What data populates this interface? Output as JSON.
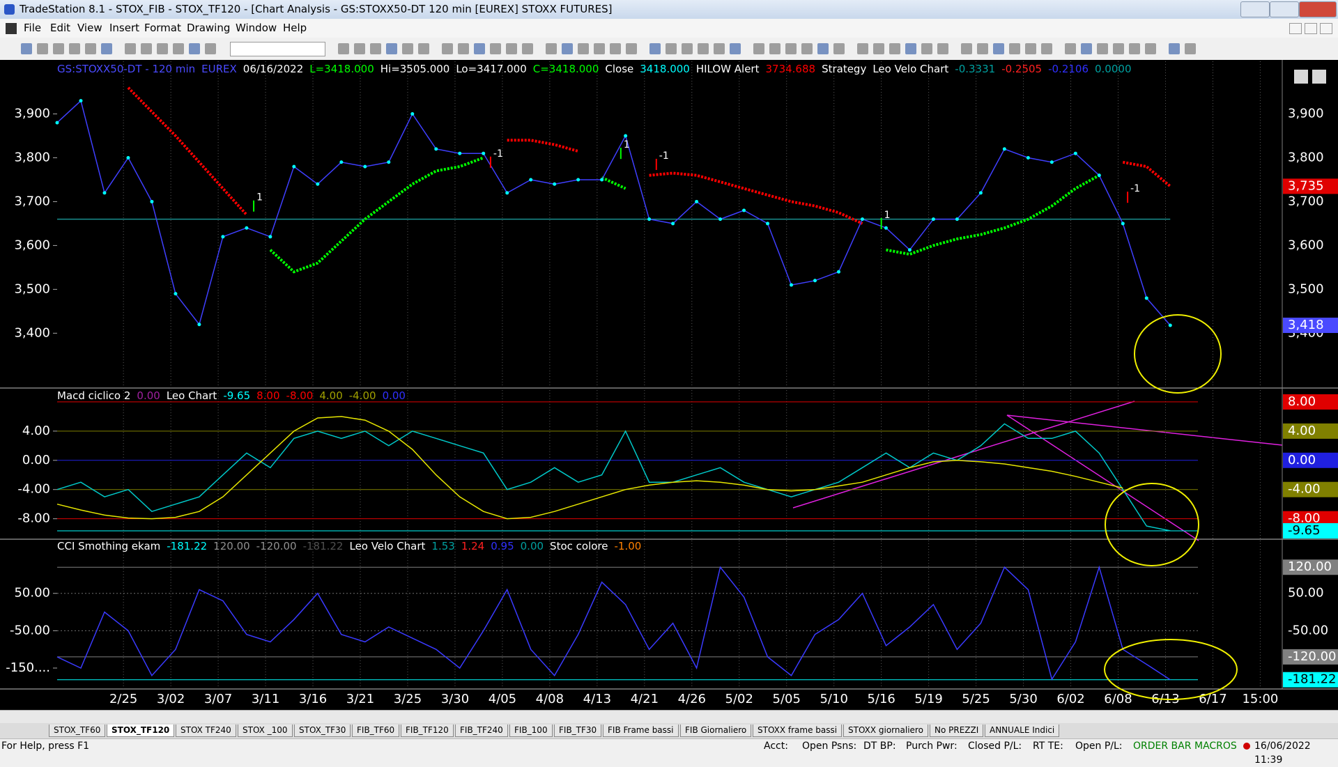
{
  "window": {
    "title": "TradeStation 8.1 - STOX_FIB - STOX_TF120 - [Chart Analysis - GS:STOXX50-DT  120 min  [EUREX] STOXX FUTURES]",
    "menu": [
      "File",
      "Edit",
      "View",
      "Insert",
      "Format",
      "Drawing",
      "Window",
      "Help"
    ],
    "tabs": [
      "STOX_TF60",
      "STOX_TF120",
      "STOX TF240",
      "STOX _100",
      "STOX_TF30",
      "FIB_TF60",
      "FIB_TF120",
      "FIB_TF240",
      "FIB_100",
      "FIB_TF30",
      "FIB Frame bassi",
      "FIB Giornaliero",
      "STOXX frame bassi",
      "STOXX giornaliero",
      "No PREZZI",
      "ANNUALE Indici"
    ],
    "status": [
      "For Help, press F1",
      "Acct:",
      "Open Psns:",
      "DT BP:",
      "Purch Pwr:",
      "Closed P/L:",
      "RT TE:",
      "Open P/L:",
      "ORDER BAR",
      "MACROS",
      "16/06/2022 11:39"
    ]
  },
  "chart_data": [
    {
      "type": "line",
      "header": [
        {
          "text": "GS:STOXX50-DT - 120 min",
          "color": "#4a4aff"
        },
        {
          "text": "EUREX",
          "color": "#4a4aff"
        },
        {
          "text": "06/16/2022",
          "color": "#ffffff"
        },
        {
          "text": "L=3418.000",
          "color": "#00ff00"
        },
        {
          "text": "Hi=3505.000",
          "color": "#ffffff"
        },
        {
          "text": "Lo=3417.000",
          "color": "#ffffff"
        },
        {
          "text": "C=3418.000",
          "color": "#00ff00"
        },
        {
          "text": "Close",
          "color": "#ffffff"
        },
        {
          "text": "3418.000",
          "color": "#00ffff"
        },
        {
          "text": "HILOW Alert",
          "color": "#ffffff"
        },
        {
          "text": "3734.688",
          "color": "#ff0000"
        },
        {
          "text": "Strategy",
          "color": "#ffffff"
        },
        {
          "text": "Leo Velo Chart",
          "color": "#ffffff"
        },
        {
          "text": "-0.3331",
          "color": "#00a0a0"
        },
        {
          "text": "-0.2505",
          "color": "#ff2020"
        },
        {
          "text": "-0.2106",
          "color": "#3030ff"
        },
        {
          "text": "0.0000",
          "color": "#00a0a0"
        }
      ],
      "x": [
        0,
        1,
        2,
        3,
        4,
        5,
        6,
        7,
        8,
        9,
        10,
        11,
        12,
        13,
        14,
        15,
        16,
        17,
        18,
        19,
        20,
        21,
        22,
        23,
        24,
        25,
        26,
        27,
        28,
        29,
        30,
        31,
        32,
        33,
        34,
        35,
        36,
        37,
        38,
        39,
        40,
        41,
        42,
        43,
        44,
        45,
        46,
        47
      ],
      "values": [
        3880,
        3930,
        3720,
        3800,
        3700,
        3490,
        3420,
        3620,
        3640,
        3620,
        3780,
        3740,
        3790,
        3780,
        3790,
        3900,
        3820,
        3810,
        3810,
        3720,
        3750,
        3740,
        3750,
        3750,
        3850,
        3660,
        3650,
        3700,
        3660,
        3680,
        3650,
        3510,
        3520,
        3540,
        3660,
        3640,
        3590,
        3660,
        3660,
        3720,
        3820,
        3800,
        3790,
        3810,
        3760,
        3650,
        3480,
        3418
      ],
      "color": "#3f3fff",
      "marker_color": "#00ffff",
      "hilow_down": [
        null,
        null,
        null,
        3960,
        3905,
        3850,
        3790,
        3730,
        3670,
        null,
        null,
        null,
        null,
        null,
        null,
        null,
        null,
        null,
        null,
        3840,
        3840,
        3830,
        3815,
        null,
        null,
        3760,
        3765,
        3760,
        3745,
        3730,
        3715,
        3700,
        3690,
        3675,
        3650,
        null,
        null,
        null,
        null,
        null,
        null,
        null,
        null,
        null,
        null,
        3790,
        3780,
        3735
      ],
      "hilow_up": [
        null,
        null,
        null,
        null,
        null,
        null,
        null,
        null,
        null,
        3590,
        3540,
        3560,
        3610,
        3660,
        3700,
        3740,
        3770,
        3780,
        3800,
        null,
        null,
        null,
        null,
        3755,
        3730,
        null,
        null,
        null,
        null,
        null,
        null,
        null,
        null,
        null,
        null,
        3590,
        3580,
        3600,
        3615,
        3625,
        3640,
        3660,
        3690,
        3730,
        3760,
        null,
        null,
        null
      ],
      "down_color": "#ff0000",
      "up_color": "#00ff00",
      "level": 3660,
      "level_color": "#1a9090",
      "ylim": [
        3275,
        4020
      ],
      "yticks": [
        {
          "value": 3900,
          "label": "3,900"
        },
        {
          "value": 3800,
          "label": "3,800"
        },
        {
          "value": 3700,
          "label": "3,700"
        },
        {
          "value": 3600,
          "label": "3,600"
        },
        {
          "value": 3500,
          "label": "3,500"
        },
        {
          "value": 3400,
          "label": "3,400"
        }
      ],
      "price_markers": [
        {
          "value": 3735,
          "label": "3,735",
          "color": "#e00000"
        },
        {
          "value": 3418,
          "label": "3,418",
          "color": "#4a4aff"
        }
      ],
      "signals": [
        {
          "label": "1",
          "x": 8.3,
          "y": 3690,
          "color": "#00ff00"
        },
        {
          "label": "-1",
          "x": 18.3,
          "y": 3790,
          "color": "#ff0000"
        },
        {
          "label": "1",
          "x": 23.8,
          "y": 3810,
          "color": "#00ff00"
        },
        {
          "label": "-1",
          "x": 25.3,
          "y": 3785,
          "color": "#ff0000"
        },
        {
          "label": "1",
          "x": 34.8,
          "y": 3650,
          "color": "#00ff00"
        },
        {
          "label": "-1",
          "x": 45.2,
          "y": 3710,
          "color": "#ff0000"
        }
      ],
      "xlim": [
        0,
        51.7
      ],
      "xticks": [
        {
          "value": 2.8,
          "label": "2/25"
        },
        {
          "value": 4.8,
          "label": "3/02"
        },
        {
          "value": 6.8,
          "label": "3/07"
        },
        {
          "value": 8.8,
          "label": "3/11"
        },
        {
          "value": 10.8,
          "label": "3/16"
        },
        {
          "value": 12.8,
          "label": "3/21"
        },
        {
          "value": 14.8,
          "label": "3/25"
        },
        {
          "value": 16.8,
          "label": "3/30"
        },
        {
          "value": 18.8,
          "label": "4/05"
        },
        {
          "value": 20.8,
          "label": "4/08"
        },
        {
          "value": 22.8,
          "label": "4/13"
        },
        {
          "value": 24.8,
          "label": "4/21"
        },
        {
          "value": 26.8,
          "label": "4/26"
        },
        {
          "value": 28.8,
          "label": "5/02"
        },
        {
          "value": 30.8,
          "label": "5/05"
        },
        {
          "value": 32.8,
          "label": "5/10"
        },
        {
          "value": 34.8,
          "label": "5/16"
        },
        {
          "value": 36.8,
          "label": "5/19"
        },
        {
          "value": 38.8,
          "label": "5/25"
        },
        {
          "value": 40.8,
          "label": "5/30"
        },
        {
          "value": 42.8,
          "label": "6/02"
        },
        {
          "value": 44.8,
          "label": "6/08"
        },
        {
          "value": 46.8,
          "label": "6/13"
        },
        {
          "value": 48.8,
          "label": "6/17"
        },
        {
          "value": 50.8,
          "label": "15:00"
        }
      ]
    },
    {
      "type": "line",
      "header": [
        {
          "text": "Macd ciclico 2",
          "color": "#ffffff"
        },
        {
          "text": "0.00",
          "color": "#a020a0"
        },
        {
          "text": "Leo Chart",
          "color": "#ffffff"
        },
        {
          "text": "-9.65",
          "color": "#00ffff"
        },
        {
          "text": "8.00",
          "color": "#ff0000"
        },
        {
          "text": "-8.00",
          "color": "#ff0000"
        },
        {
          "text": "4.00",
          "color": "#a0a000"
        },
        {
          "text": "-4.00",
          "color": "#a0a000"
        },
        {
          "text": "0.00",
          "color": "#3030ff"
        }
      ],
      "x": [
        0,
        1,
        2,
        3,
        4,
        5,
        6,
        7,
        8,
        9,
        10,
        11,
        12,
        13,
        14,
        15,
        16,
        17,
        18,
        19,
        20,
        21,
        22,
        23,
        24,
        25,
        26,
        27,
        28,
        29,
        30,
        31,
        32,
        33,
        34,
        35,
        36,
        37,
        38,
        39,
        40,
        41,
        42,
        43,
        44,
        45,
        46,
        47
      ],
      "series": [
        {
          "color": "#00c8c8",
          "values": [
            -4,
            -3,
            -5,
            -4,
            -7,
            -6,
            -5,
            -2,
            1,
            -1,
            3,
            4,
            3,
            4,
            2,
            4,
            3,
            2,
            1,
            -4,
            -3,
            -1,
            -3,
            -2,
            4,
            -3,
            -3,
            -2,
            -1,
            -3,
            -4,
            -5,
            -4,
            -3,
            -1,
            1,
            -1,
            1,
            0,
            2,
            5,
            3,
            3,
            4,
            1,
            -4,
            -9,
            -9.65
          ]
        },
        {
          "color": "#e6e600",
          "values": [
            -6,
            -6.8,
            -7.5,
            -7.9,
            -8,
            -7.8,
            -7,
            -5,
            -2,
            1,
            4,
            5.8,
            6,
            5.5,
            4,
            1.5,
            -2,
            -5,
            -7,
            -8,
            -7.8,
            -7,
            -6,
            -5,
            -4,
            -3.4,
            -3,
            -2.8,
            -3,
            -3.4,
            -4,
            -4.2,
            -4,
            -3.5,
            -3,
            -2,
            -1,
            -0.2,
            0,
            -0.2,
            -0.5,
            -1,
            -1.5,
            -2.2,
            -3,
            -3.8,
            null,
            null
          ]
        }
      ],
      "ylim": [
        -10.8,
        9.9
      ],
      "yticks": [
        {
          "value": 4,
          "label": "4.00"
        },
        {
          "value": 0,
          "label": "0.00"
        },
        {
          "value": -4,
          "label": "-4.00"
        },
        {
          "value": -8,
          "label": "-8.00"
        }
      ],
      "levels": [
        {
          "value": 8,
          "label": "8.00",
          "color": "#e00000"
        },
        {
          "value": 4,
          "label": "4.00",
          "color": "#808000"
        },
        {
          "value": 0,
          "label": "0.00",
          "color": "#2020e0"
        },
        {
          "value": -4,
          "label": "-4.00",
          "color": "#808000"
        },
        {
          "value": -8,
          "label": "-8.00",
          "color": "#e00000"
        },
        {
          "value": -9.65,
          "label": "-9.65",
          "color": "#00ffff"
        }
      ]
    },
    {
      "type": "line",
      "header": [
        {
          "text": "CCI Smothing ekam",
          "color": "#ffffff"
        },
        {
          "text": "-181.22",
          "color": "#00ffff"
        },
        {
          "text": "120.00",
          "color": "#909090"
        },
        {
          "text": "-120.00",
          "color": "#909090"
        },
        {
          "text": "-181.22",
          "color": "#505050"
        },
        {
          "text": "Leo Velo Chart",
          "color": "#ffffff"
        },
        {
          "text": "1.53",
          "color": "#00a0a0"
        },
        {
          "text": "1.24",
          "color": "#ff2020"
        },
        {
          "text": "0.95",
          "color": "#3030ff"
        },
        {
          "text": "0.00",
          "color": "#00a0a0"
        },
        {
          "text": "Stoc colore",
          "color": "#ffffff"
        },
        {
          "text": "-1.00",
          "color": "#ff8000"
        }
      ],
      "x": [
        0,
        1,
        2,
        3,
        4,
        5,
        6,
        7,
        8,
        9,
        10,
        11,
        12,
        13,
        14,
        15,
        16,
        17,
        18,
        19,
        20,
        21,
        22,
        23,
        24,
        25,
        26,
        27,
        28,
        29,
        30,
        31,
        32,
        33,
        34,
        35,
        36,
        37,
        38,
        39,
        40,
        41,
        42,
        43,
        44,
        45,
        46,
        47
      ],
      "series": [
        {
          "color": "#3a3aff",
          "values": [
            -120,
            -150,
            0,
            -50,
            -170,
            -100,
            60,
            30,
            -60,
            -80,
            -20,
            50,
            -60,
            -80,
            -40,
            -70,
            -100,
            -150,
            -50,
            60,
            -100,
            -170,
            -60,
            80,
            20,
            -100,
            -30,
            -150,
            120,
            40,
            -120,
            -170,
            -60,
            -20,
            50,
            -90,
            -40,
            20,
            -100,
            -30,
            120,
            60,
            -180,
            -80,
            120,
            -100,
            -140,
            -181.22
          ]
        }
      ],
      "ylim": [
        -206,
        195
      ],
      "yticks": [
        {
          "value": 50,
          "label": "50.00"
        },
        {
          "value": -50,
          "label": "-50.00"
        },
        {
          "value": -150,
          "label": "-150...."
        }
      ],
      "levels": [
        {
          "value": 120,
          "label": "120.00",
          "color": "#808080"
        },
        {
          "value": 50,
          "label": "50.00",
          "color": null
        },
        {
          "value": -50,
          "label": "-50.00",
          "color": null
        },
        {
          "value": -120,
          "label": "-120.00",
          "color": "#808080"
        },
        {
          "value": -181.22,
          "label": "-181.22",
          "color": "#00ffff"
        }
      ]
    }
  ]
}
